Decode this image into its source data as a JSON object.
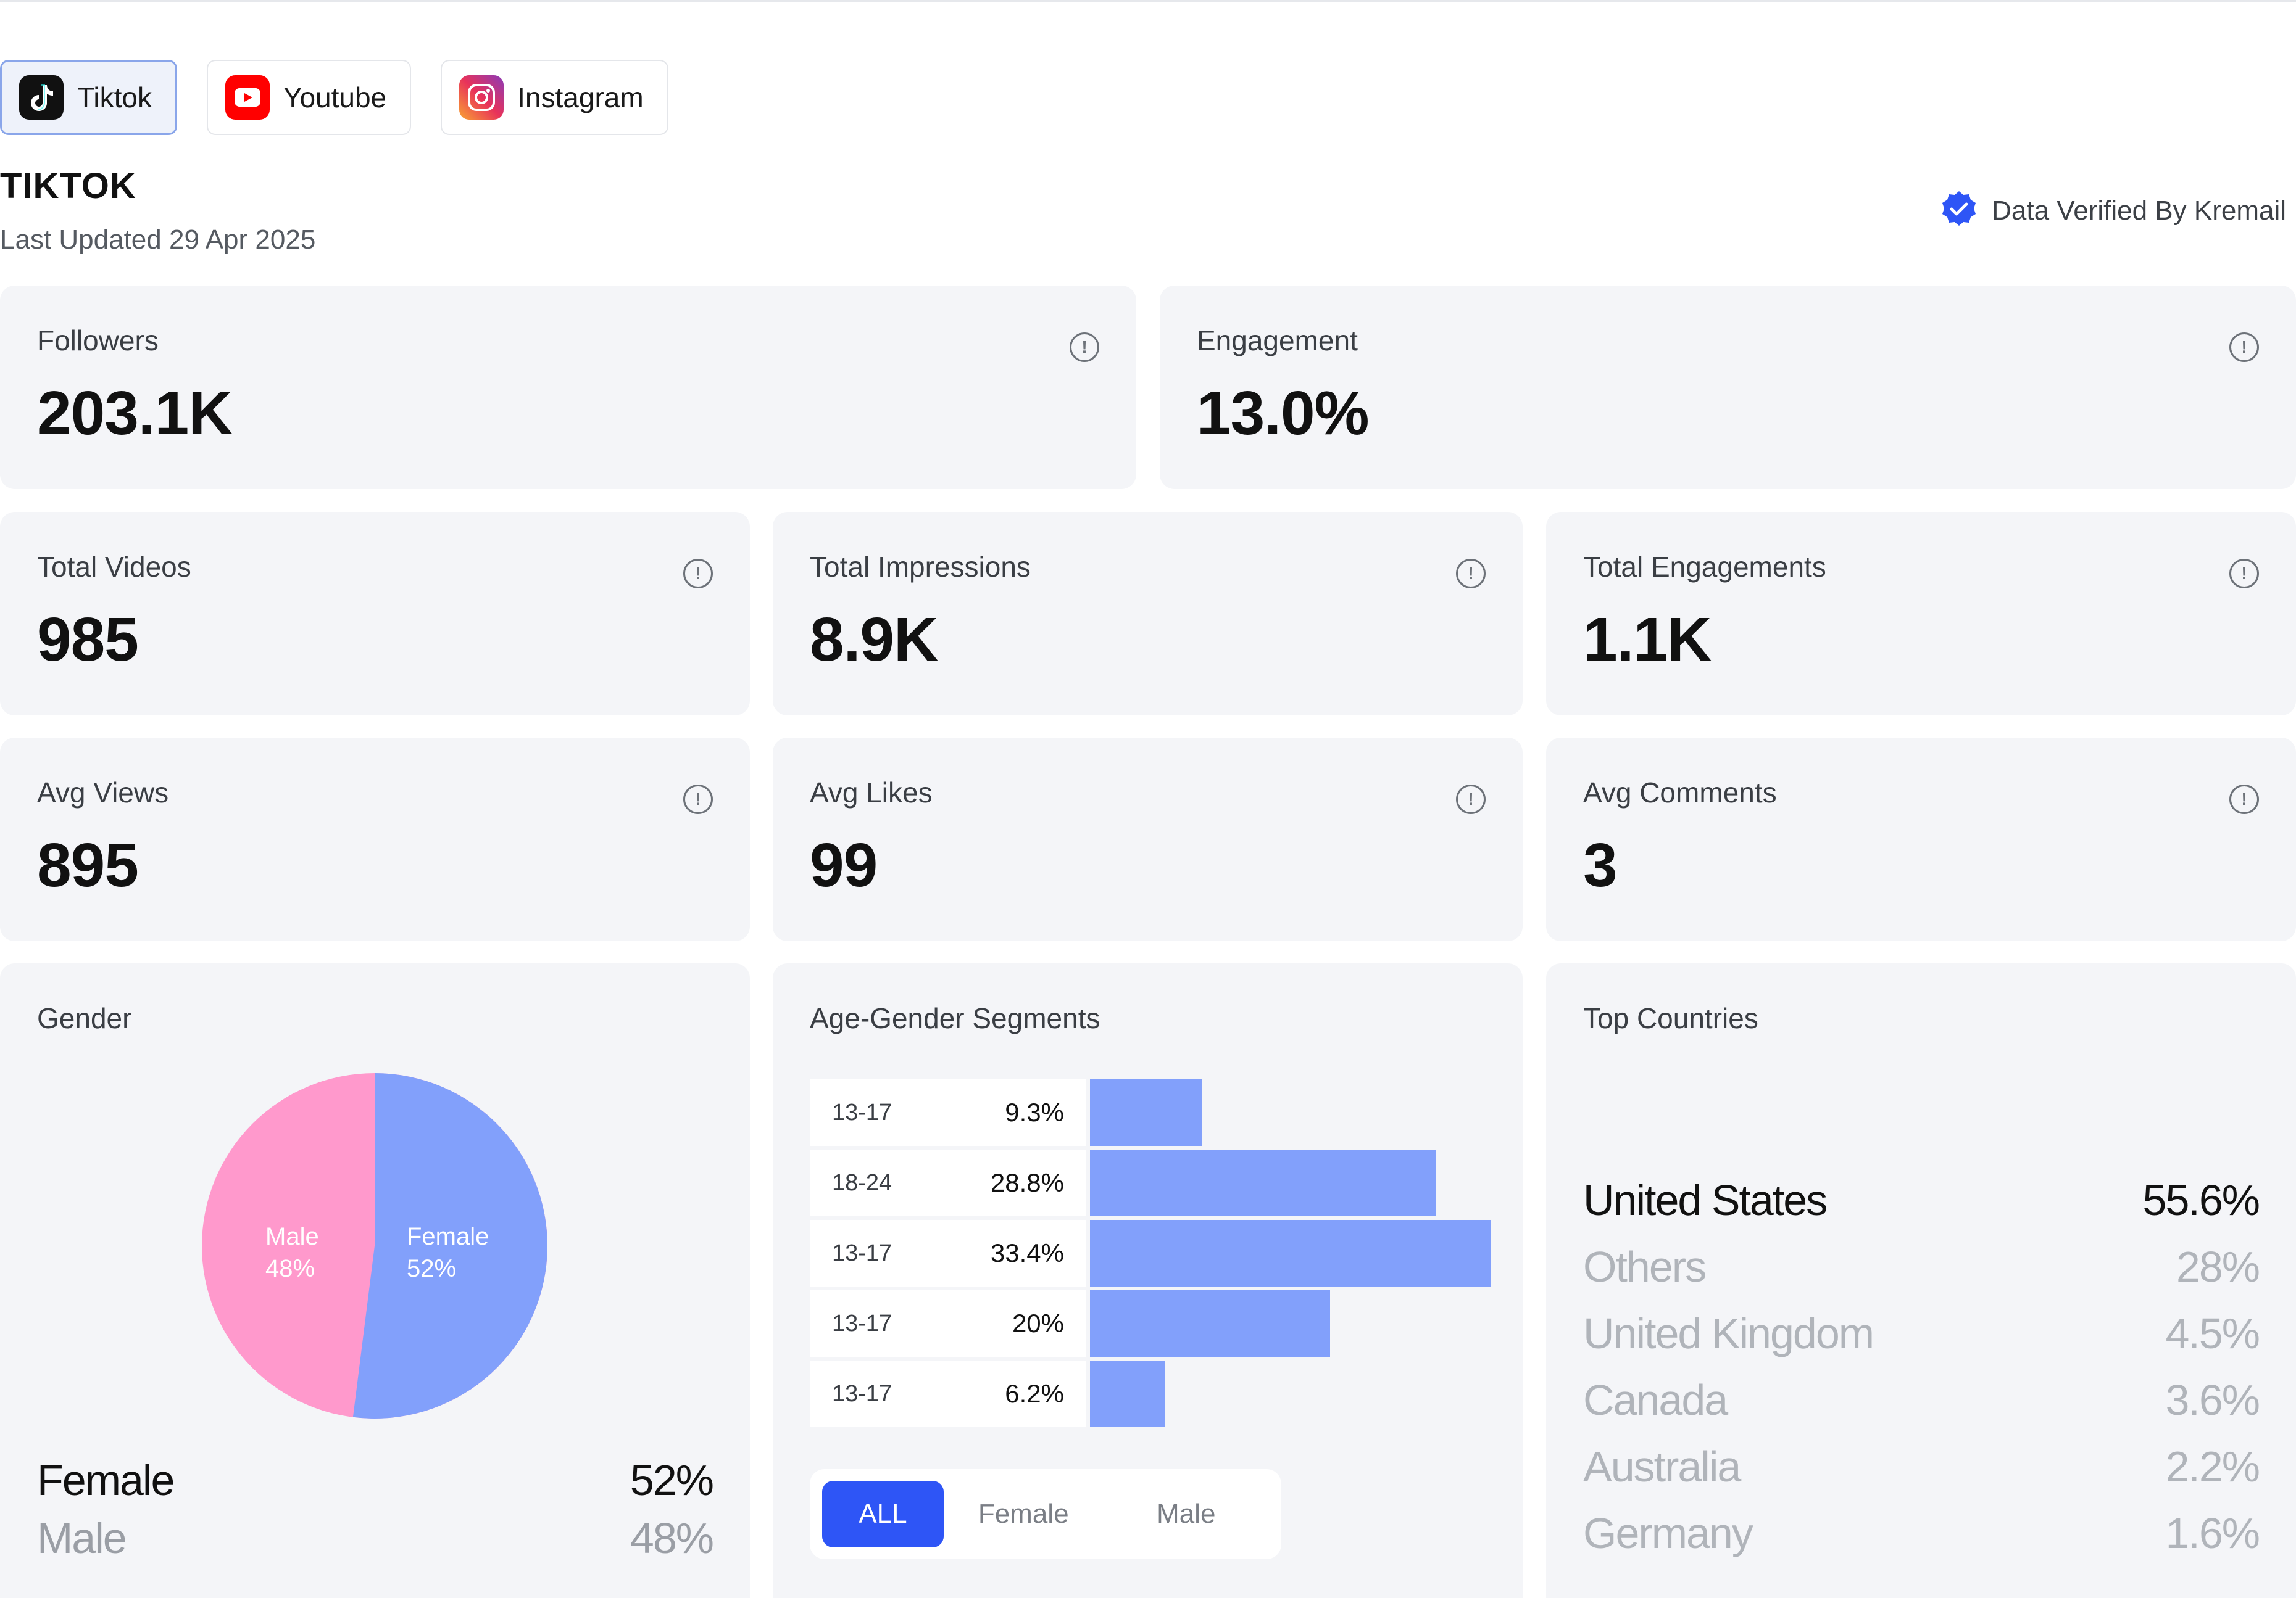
{
  "tabs": [
    {
      "label": "Tiktok",
      "icon": "tiktok-icon",
      "active": true
    },
    {
      "label": "Youtube",
      "icon": "youtube-icon",
      "active": false
    },
    {
      "label": "Instagram",
      "icon": "instagram-icon",
      "active": false
    }
  ],
  "header": {
    "title": "TIKTOK",
    "last_updated": "Last Updated 29 Apr 2025",
    "verified": "Data Verified By Kremail"
  },
  "stats": {
    "followers": {
      "label": "Followers",
      "value": "203.1K"
    },
    "engagement": {
      "label": "Engagement",
      "value": "13.0%"
    },
    "total_videos": {
      "label": "Total Videos",
      "value": "985"
    },
    "total_impressions": {
      "label": "Total Impressions",
      "value": "8.9K"
    },
    "total_engagements": {
      "label": "Total Engagements",
      "value": "1.1K"
    },
    "avg_views": {
      "label": "Avg Views",
      "value": "895"
    },
    "avg_likes": {
      "label": "Avg Likes",
      "value": "99"
    },
    "avg_comments": {
      "label": "Avg Comments",
      "value": "3"
    }
  },
  "gender": {
    "title": "Gender",
    "female": {
      "name": "Female",
      "pct": "52%",
      "color": "#82a0fb"
    },
    "male": {
      "name": "Male",
      "pct": "48%",
      "color": "#ff99cc"
    },
    "legend": [
      {
        "name": "Female",
        "pct": "52%"
      },
      {
        "name": "Male",
        "pct": "48%"
      }
    ]
  },
  "age_segments": {
    "title": "Age-Gender Segments",
    "rows": [
      {
        "range": "13-17",
        "pct": "9.3%",
        "value": 9.3
      },
      {
        "range": "18-24",
        "pct": "28.8%",
        "value": 28.8
      },
      {
        "range": "13-17",
        "pct": "33.4%",
        "value": 33.4
      },
      {
        "range": "13-17",
        "pct": "20%",
        "value": 20
      },
      {
        "range": "13-17",
        "pct": "6.2%",
        "value": 6.2
      }
    ],
    "filters": {
      "all": "ALL",
      "female": "Female",
      "male": "Male"
    }
  },
  "countries": {
    "title": "Top Countries",
    "rows": [
      {
        "name": "United States",
        "pct": "55.6%"
      },
      {
        "name": "Others",
        "pct": "28%"
      },
      {
        "name": "United Kingdom",
        "pct": "4.5%"
      },
      {
        "name": "Canada",
        "pct": "3.6%"
      },
      {
        "name": "Australia",
        "pct": "2.2%"
      },
      {
        "name": "Germany",
        "pct": "1.6%"
      }
    ]
  },
  "colors": {
    "accent": "#2e55f6",
    "card_bg": "#f4f5f8",
    "bar": "#82a0fb",
    "pink": "#ff99cc"
  }
}
